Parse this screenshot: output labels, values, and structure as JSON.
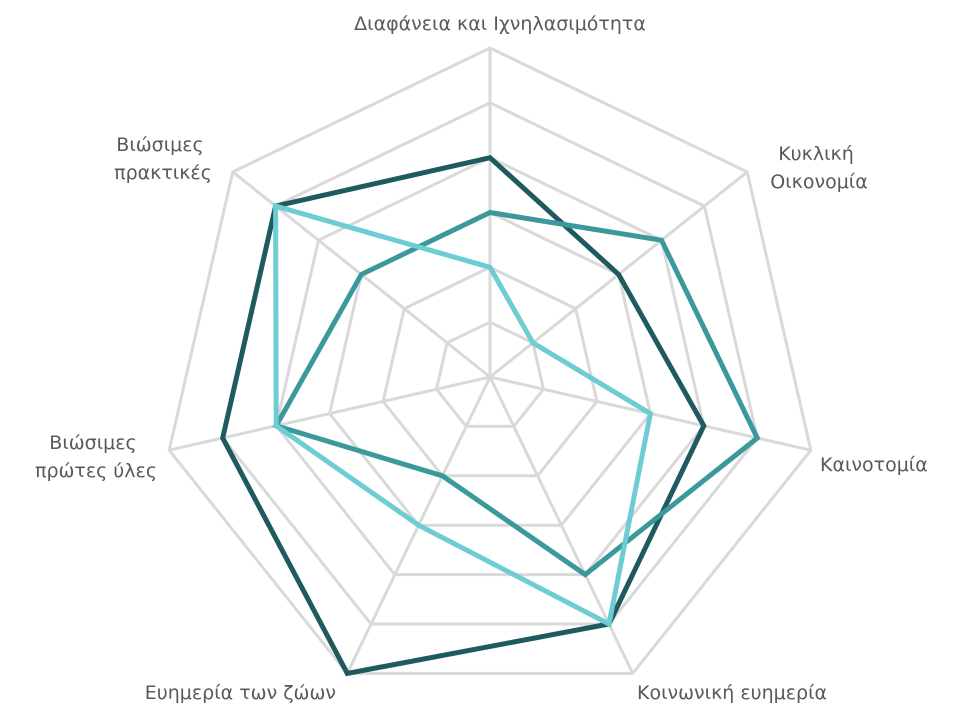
{
  "chart_data": {
    "type": "radar",
    "title": "",
    "categories": [
      "Διαφάνεια και Ιχνηλασιμότητα",
      "Κυκλική Οικονομία",
      "Καινοτομία",
      "Κοινωνική ευημερία",
      "Ευημερία των ζώων",
      "Βιώσιμες πρώτες ύλες",
      "Βιώσιμες πρακτικές"
    ],
    "series": [
      {
        "values": [
          4,
          3,
          4,
          5,
          6,
          5,
          5
        ],
        "color": "#1f5b5e"
      },
      {
        "values": [
          3,
          4,
          5,
          4,
          2,
          4,
          3
        ],
        "color": "#3b999c"
      },
      {
        "values": [
          2,
          1,
          3,
          5,
          3,
          4,
          5
        ],
        "color": "#6dcdd3"
      }
    ],
    "rlim": [
      0,
      6
    ],
    "grid": true,
    "grid_levels": 6,
    "grid_color": "#d9d9d9",
    "label_color": "#595959",
    "legend": "none"
  }
}
